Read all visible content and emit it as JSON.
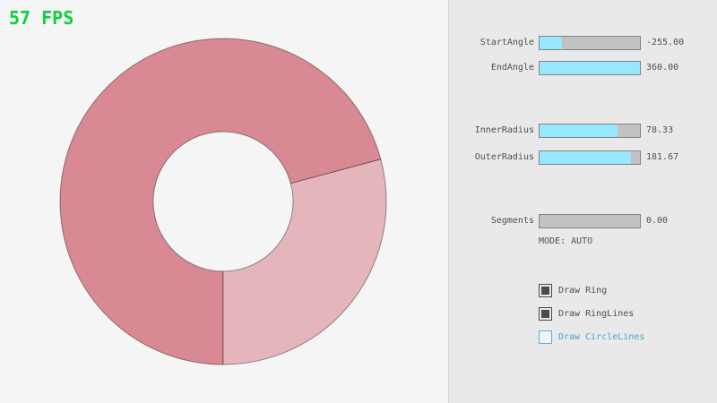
{
  "app": {
    "fps_label": "57 FPS"
  },
  "colors": {
    "background": "#f5f5f5",
    "panel_background": "#e9e9e9",
    "ring_dark": "#d98994",
    "ring_light": "#e5b5bc",
    "ring_outline": "rgba(0,0,0,0.4)",
    "fps_green": "#0ccf3c",
    "slider_fill": "#97e8ff",
    "accent_blue": "#5bb2d9"
  },
  "panel": {
    "sliders": [
      {
        "label": "StartAngle",
        "value": "-255.00",
        "fill_pct": 22
      },
      {
        "label": "EndAngle",
        "value": "360.00",
        "fill_pct": 100
      },
      {
        "label": "InnerRadius",
        "value": "78.33",
        "fill_pct": 78
      },
      {
        "label": "OuterRadius",
        "value": "181.67",
        "fill_pct": 91
      },
      {
        "label": "Segments",
        "value": "0.00",
        "fill_pct": 0
      }
    ],
    "mode_text": "MODE: AUTO",
    "checkboxes": [
      {
        "label": "Draw Ring",
        "checked": true
      },
      {
        "label": "Draw RingLines",
        "checked": true
      },
      {
        "label": "Draw CircleLines",
        "checked": false
      }
    ]
  }
}
